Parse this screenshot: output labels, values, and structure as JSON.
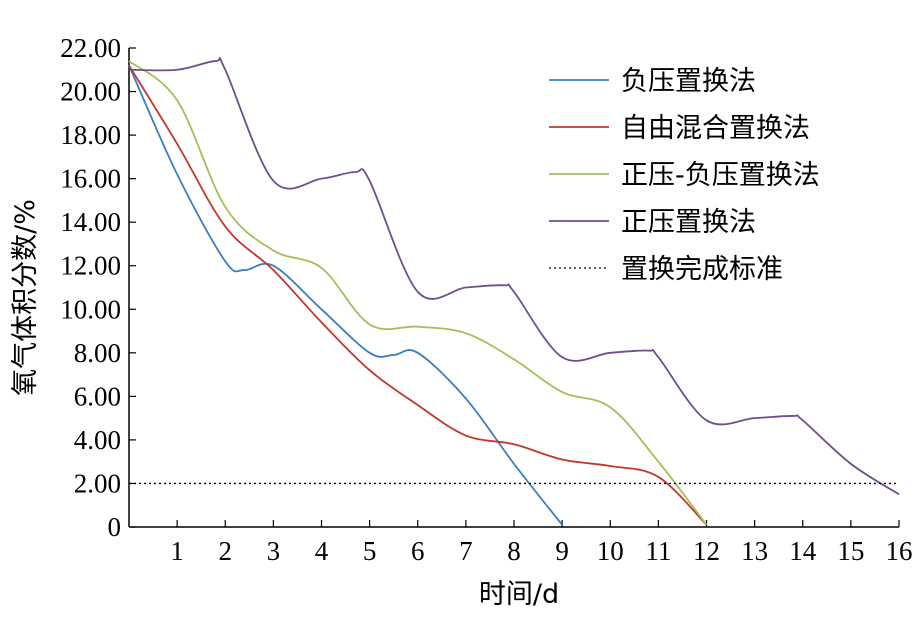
{
  "chart_data": {
    "type": "line",
    "xlabel": "时间/d",
    "ylabel": "氧气体积分数/%",
    "xlim": [
      0,
      16
    ],
    "ylim": [
      0,
      22
    ],
    "x_ticks": [
      1,
      2,
      3,
      4,
      5,
      6,
      7,
      8,
      9,
      10,
      11,
      12,
      13,
      14,
      15,
      16
    ],
    "y_ticks": [
      "0",
      "2.00",
      "4.00",
      "6.00",
      "8.00",
      "10.00",
      "12.00",
      "14.00",
      "16.00",
      "18.00",
      "20.00",
      "22.00"
    ],
    "grid": false,
    "legend_position": "top-right",
    "series": [
      {
        "name": "负压置换法",
        "color": "#3a7ebf",
        "x": [
          0,
          1,
          2,
          2.4,
          3,
          4,
          5,
          5.5,
          6,
          7,
          8,
          9
        ],
        "y": [
          21.2,
          16.2,
          12.2,
          11.8,
          12.0,
          10.0,
          8.0,
          7.9,
          8.0,
          5.9,
          2.9,
          0.1
        ]
      },
      {
        "name": "自由混合置换法",
        "color": "#c0392b",
        "x": [
          0,
          1,
          2,
          3,
          4,
          5,
          6,
          7,
          8,
          9,
          10,
          11,
          12
        ],
        "y": [
          21.2,
          17.6,
          13.8,
          11.8,
          9.4,
          7.2,
          5.6,
          4.2,
          3.8,
          3.1,
          2.8,
          2.3,
          0.1
        ]
      },
      {
        "name": "正压-负压置换法",
        "color": "#a0c05a",
        "x": [
          0,
          1,
          2,
          3,
          4,
          5,
          6,
          7,
          8,
          9,
          10,
          11,
          12
        ],
        "y": [
          21.4,
          19.6,
          14.7,
          12.7,
          11.9,
          9.3,
          9.2,
          8.9,
          7.7,
          6.2,
          5.5,
          3.0,
          0.1
        ]
      },
      {
        "name": "正压置换法",
        "color": "#6e4f8e",
        "x": [
          0,
          1,
          1.8,
          2,
          3,
          4,
          4.7,
          5,
          6,
          7,
          7.8,
          8,
          9,
          10,
          10.8,
          11,
          12,
          13,
          13.8,
          14,
          15,
          16
        ],
        "y": [
          21.0,
          21.0,
          21.4,
          21.0,
          15.9,
          16.0,
          16.3,
          15.9,
          10.8,
          11.0,
          11.1,
          10.8,
          7.8,
          8.0,
          8.1,
          7.8,
          4.9,
          5.0,
          5.1,
          4.9,
          2.9,
          1.5
        ]
      },
      {
        "name": "置换完成标准",
        "color": "#000000",
        "dashed": true,
        "x": [
          0,
          16
        ],
        "y": [
          2.0,
          2.0
        ]
      }
    ]
  }
}
